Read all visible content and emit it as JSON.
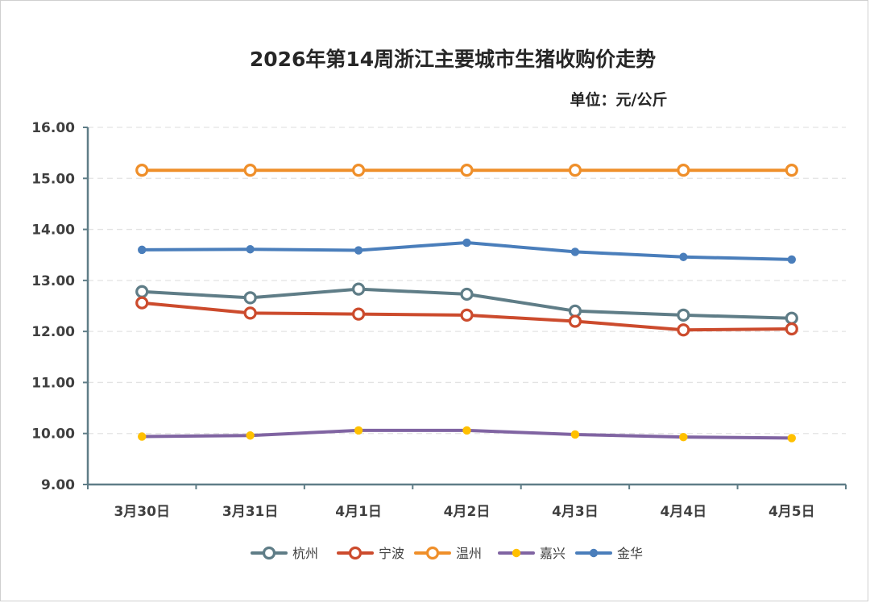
{
  "chart_data": {
    "type": "line",
    "title": "2026年第14周浙江主要城市生猪收购价走势",
    "unit_label": "单位：元/公斤",
    "categories": [
      "3月30日",
      "3月31日",
      "4月1日",
      "4月2日",
      "4月3日",
      "4月4日",
      "4月5日"
    ],
    "ylim": [
      9.0,
      16.0
    ],
    "yticks": [
      "9.00",
      "10.00",
      "11.00",
      "12.00",
      "13.00",
      "14.00",
      "15.00",
      "16.00"
    ],
    "grid": true,
    "legend_position": "bottom",
    "series": [
      {
        "name": "杭州",
        "color": "#5f7d87",
        "marker": "hollow-circle",
        "values": [
          12.78,
          12.66,
          12.83,
          12.73,
          12.4,
          12.32,
          12.26
        ]
      },
      {
        "name": "宁波",
        "color": "#cc4b2d",
        "marker": "hollow-circle",
        "values": [
          12.56,
          12.36,
          12.34,
          12.32,
          12.2,
          12.03,
          12.05
        ]
      },
      {
        "name": "温州",
        "color": "#ef8f2a",
        "marker": "hollow-circle",
        "values": [
          15.16,
          15.16,
          15.16,
          15.16,
          15.16,
          15.16,
          15.16
        ]
      },
      {
        "name": "嘉兴",
        "color": "#8064a2",
        "marker": "yellow-dot",
        "marker_color": "#ffc000",
        "values": [
          9.94,
          9.96,
          10.06,
          10.06,
          9.98,
          9.93,
          9.91
        ]
      },
      {
        "name": "金华",
        "color": "#4a7ebb",
        "marker": "solid-dot",
        "values": [
          13.6,
          13.61,
          13.59,
          13.74,
          13.56,
          13.46,
          13.41
        ]
      }
    ]
  }
}
